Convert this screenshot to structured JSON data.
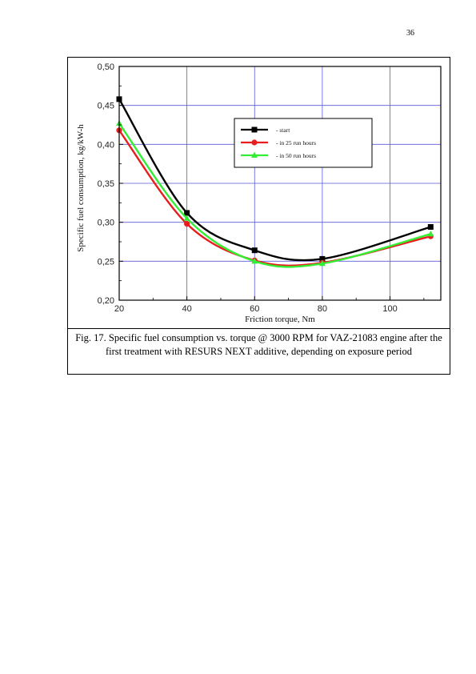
{
  "page": {
    "number": "36"
  },
  "figure": {
    "caption": "Fig. 17. Specific fuel consumption vs. torque @ 3000 RPM for VAZ-21083 engine after the first treatment with RESURS NEXT additive, depending on exposure period"
  },
  "chart_data": {
    "type": "line",
    "xlabel": "Friction torque, Nm",
    "ylabel": "Specific fuel consumption, kg/kW-h",
    "xlim": [
      20,
      115
    ],
    "ylim": [
      0.2,
      0.5
    ],
    "x_ticks": [
      "20",
      "40",
      "60",
      "80",
      "100"
    ],
    "y_ticks": [
      "0,20",
      "0,25",
      "0,30",
      "0,35",
      "0,40",
      "0,45",
      "0,50"
    ],
    "grid": true,
    "legend_position": "upper-center",
    "x": [
      20,
      40,
      60,
      80,
      112
    ],
    "series": [
      {
        "name": "start",
        "legend_label": "- start",
        "values": [
          0.458,
          0.312,
          0.264,
          0.253,
          0.294
        ],
        "color": "#000000",
        "marker": "square"
      },
      {
        "name": "in 25 run hours",
        "legend_label": "- in 25 run hours",
        "values": [
          0.418,
          0.298,
          0.251,
          0.248,
          0.282
        ],
        "color": "#e81e1e",
        "marker": "circle"
      },
      {
        "name": "in 50 run hours",
        "legend_label": "- in 50 run hours",
        "values": [
          0.427,
          0.305,
          0.25,
          0.247,
          0.285
        ],
        "color": "#33ee33",
        "marker": "triangle"
      }
    ]
  }
}
